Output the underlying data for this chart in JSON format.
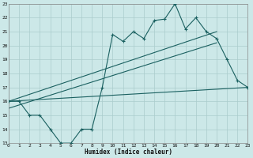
{
  "title": "",
  "xlabel": "Humidex (Indice chaleur)",
  "bg_color": "#cce8e8",
  "grid_color": "#aacccc",
  "line_color": "#1a6060",
  "xmin": 0,
  "xmax": 23,
  "ymin": 13,
  "ymax": 23,
  "main_x": [
    0,
    1,
    2,
    3,
    4,
    5,
    6,
    7,
    8,
    9,
    10,
    11,
    12,
    13,
    14,
    15,
    16,
    17,
    18,
    19,
    20,
    21,
    22,
    23
  ],
  "main_y": [
    16,
    16,
    15,
    15,
    14,
    13,
    13,
    14,
    14,
    17,
    20.8,
    20.3,
    21,
    20.5,
    21.8,
    21.9,
    23,
    21.2,
    22,
    21,
    20.5,
    19,
    17.5,
    17
  ],
  "line1_x": [
    0,
    20
  ],
  "line1_y": [
    16,
    21
  ],
  "line2_x": [
    0,
    23
  ],
  "line2_y": [
    16,
    17
  ],
  "line3_x": [
    0,
    20
  ],
  "line3_y": [
    15.5,
    20.2
  ]
}
